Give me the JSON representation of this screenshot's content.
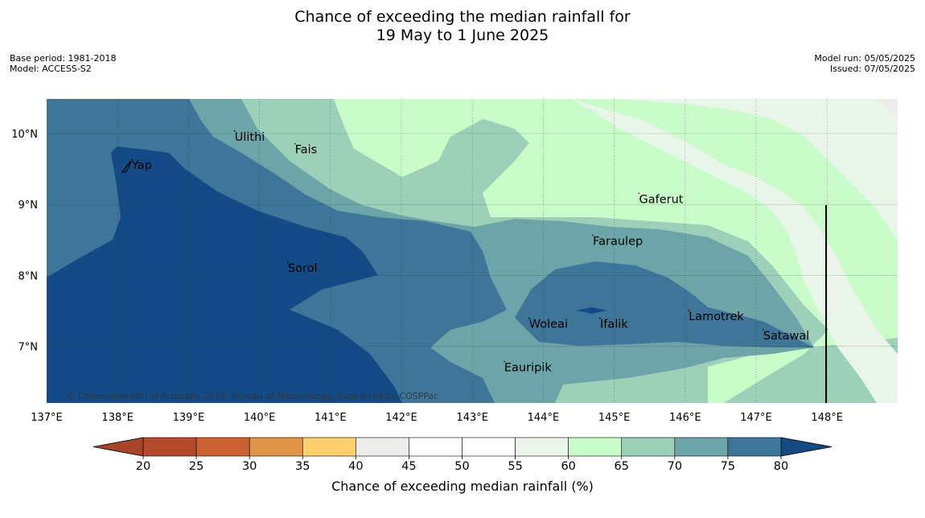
{
  "title": {
    "line1": "Chance of exceeding the median rainfall for",
    "line2": "19 May to 1 June 2025"
  },
  "meta_left": {
    "base_period": "Base period: 1981-2018",
    "model": "Model: ACCESS-S2"
  },
  "meta_right": {
    "model_run": "Model run: 05/05/2025",
    "issued": "Issued: 07/05/2025"
  },
  "map": {
    "lon_range": [
      137.0,
      149.0
    ],
    "lat_range": [
      6.2,
      10.5
    ],
    "lon_ticks": [
      "137°E",
      "138°E",
      "139°E",
      "140°E",
      "141°E",
      "142°E",
      "143°E",
      "144°E",
      "145°E",
      "146°E",
      "147°E",
      "148°E"
    ],
    "lat_ticks": [
      "7°N",
      "8°N",
      "9°N",
      "10°N"
    ],
    "copyright": "© Commonwealth of Australia 2025, Bureau of Meteorology, supported by COSPPac",
    "places": [
      {
        "name": "Ulithi",
        "lon": 139.65,
        "lat": 9.9
      },
      {
        "name": "Fais",
        "lon": 140.5,
        "lat": 9.72
      },
      {
        "name": "Yap",
        "lon": 138.2,
        "lat": 9.5
      },
      {
        "name": "Gaferut",
        "lon": 145.35,
        "lat": 9.02
      },
      {
        "name": "Faraulep",
        "lon": 144.7,
        "lat": 8.43
      },
      {
        "name": "Sorol",
        "lon": 140.4,
        "lat": 8.05
      },
      {
        "name": "Lamotrek",
        "lon": 146.05,
        "lat": 7.37
      },
      {
        "name": "Woleai",
        "lon": 143.8,
        "lat": 7.26
      },
      {
        "name": "Ifalik",
        "lon": 144.8,
        "lat": 7.26
      },
      {
        "name": "Satawal",
        "lon": 147.1,
        "lat": 7.1
      },
      {
        "name": "Eauripik",
        "lon": 143.45,
        "lat": 6.65
      }
    ]
  },
  "colorbar": {
    "label": "Chance of exceeding median rainfall (%)",
    "ticks": [
      "20",
      "25",
      "30",
      "35",
      "40",
      "45",
      "50",
      "55",
      "60",
      "65",
      "70",
      "75",
      "80"
    ],
    "low_extend_color": "#a8442a",
    "high_extend_color": "#164a7e",
    "colors": [
      "#b24a2a",
      "#cc6233",
      "#e09448",
      "#fdd06c",
      "#ececea",
      "#ffffff",
      "#ffffff",
      "#eaf5ea",
      "#c9fcc9",
      "#9cd0b8",
      "#6da4a7",
      "#3e7599"
    ]
  },
  "chart_data": {
    "type": "heatmap",
    "title": "Chance of exceeding the median rainfall for 19 May to 1 June 2025",
    "colorbar_label": "Chance of exceeding median rainfall (%)",
    "levels": [
      20,
      25,
      30,
      35,
      40,
      45,
      50,
      55,
      60,
      65,
      70,
      75,
      80
    ],
    "regions": [
      {
        "range": ">80",
        "color": "#144b86",
        "description": "west around Yap and Sorol; small patch near Ifalik"
      },
      {
        "range": "75-80",
        "color": "#3e7599",
        "description": "band around western core; east of Woleai/Ifalik"
      },
      {
        "range": "70-75",
        "color": "#6da4a7",
        "description": "central band"
      },
      {
        "range": "65-70",
        "color": "#9cd0b8",
        "description": "north-central and east"
      },
      {
        "range": "60-65",
        "color": "#c9fcc9",
        "description": "north near 142-145E and east near 148E"
      },
      {
        "range": "55-60",
        "color": "#eaf5ea",
        "description": "far north-east"
      },
      {
        "range": "40-45",
        "color": "#ececea",
        "description": "north-east corner"
      }
    ]
  }
}
